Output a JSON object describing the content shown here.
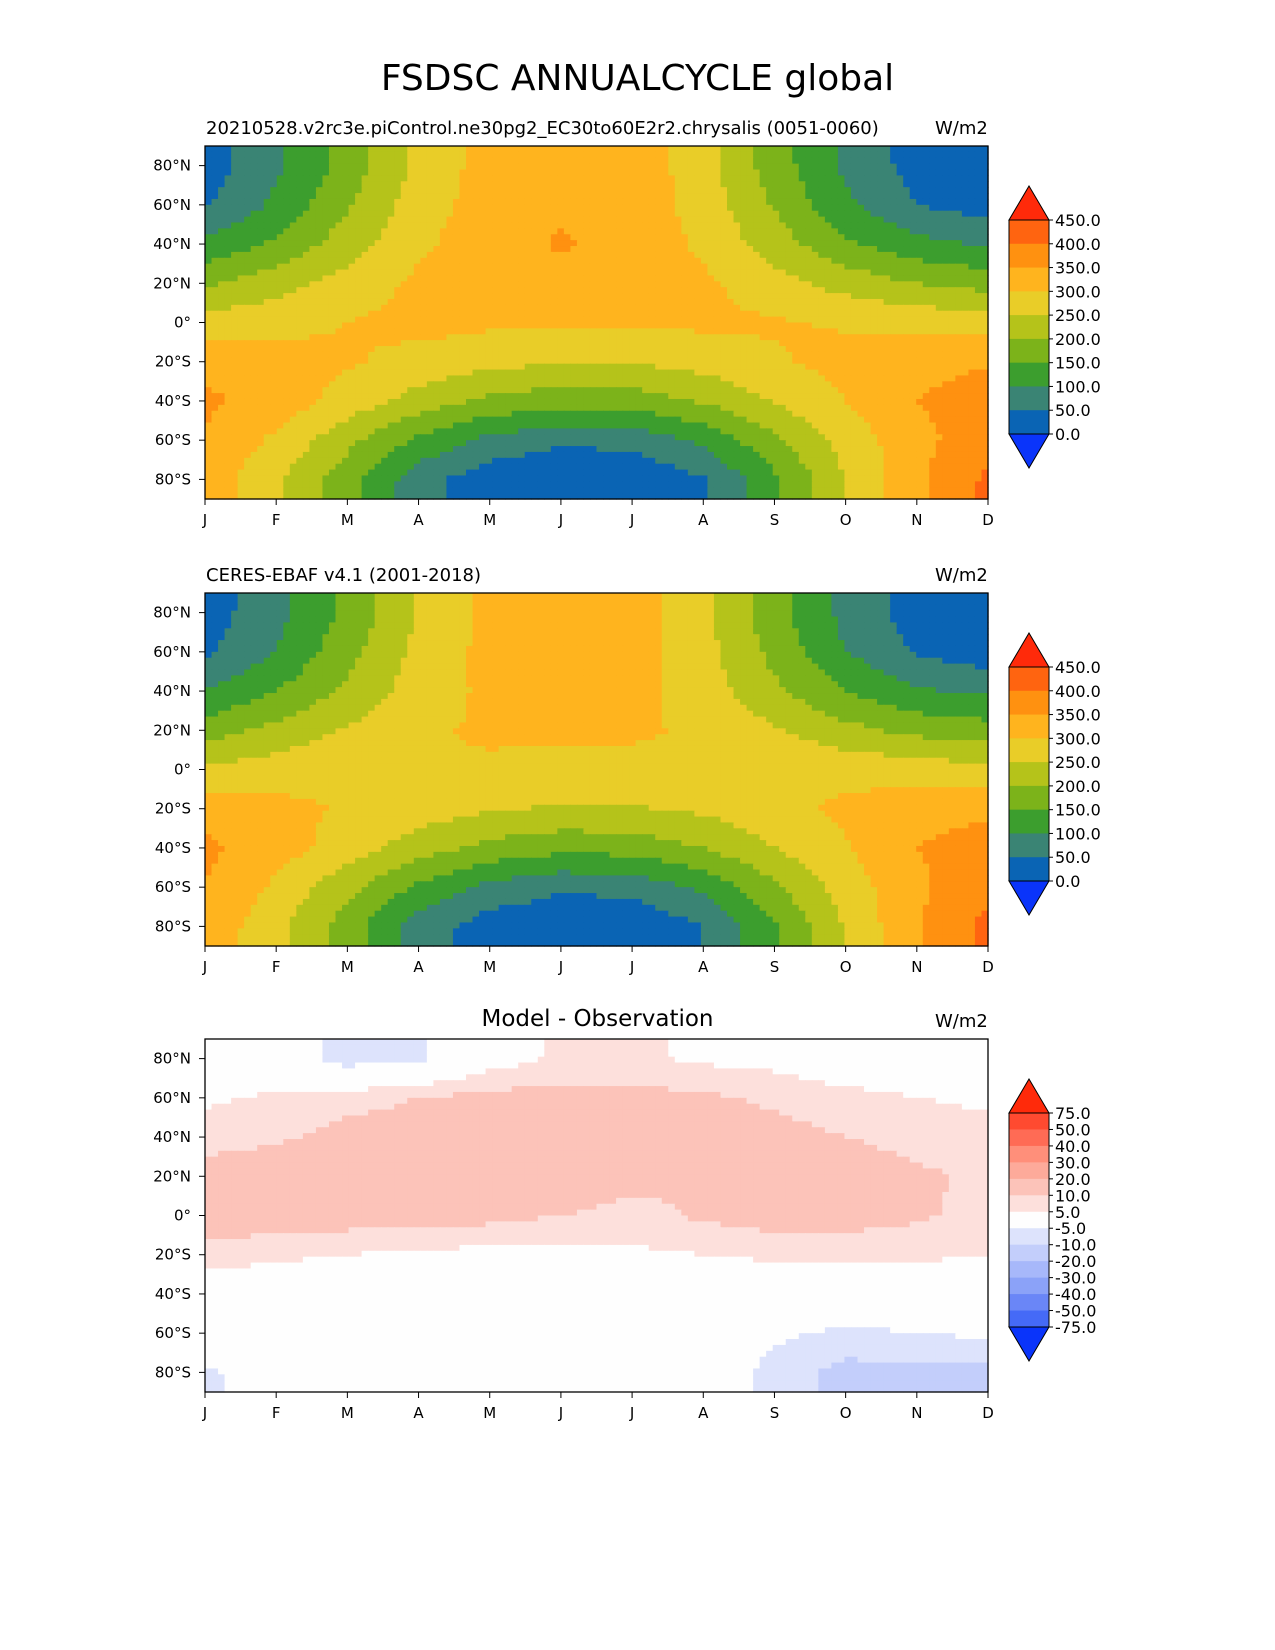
{
  "figure": {
    "title": "FSDSC ANNUALCYCLE global",
    "months": [
      "J",
      "F",
      "M",
      "A",
      "M",
      "J",
      "J",
      "A",
      "S",
      "O",
      "N",
      "D"
    ],
    "lat_ticks": [
      "80°N",
      "60°N",
      "40°N",
      "20°N",
      "0°",
      "20°S",
      "40°S",
      "60°S",
      "80°S"
    ],
    "lat_values": [
      80,
      60,
      40,
      20,
      0,
      -20,
      -40,
      -60,
      -80
    ]
  },
  "panels": [
    {
      "left_title": "20210528.v2rc3e.piControl.ne30pg2_EC30to60E2r2.chrysalis (0051-0060)",
      "center_title": "",
      "units": "W/m2",
      "colorbar": {
        "levels": [
          "450.0",
          "400.0",
          "350.0",
          "300.0",
          "250.0",
          "200.0",
          "150.0",
          "100.0",
          "50.0",
          "0.0"
        ],
        "colors": [
          "#ff2a0a",
          "#ff6410",
          "#ff9110",
          "#ffb41e",
          "#e9cd28",
          "#b5c31a",
          "#7cb31a",
          "#3c9e2e",
          "#3a8474",
          "#0a64b4",
          "#0a34fa"
        ]
      }
    },
    {
      "left_title": "CERES-EBAF v4.1 (2001-2018)",
      "center_title": "",
      "units": "W/m2",
      "colorbar": {
        "levels": [
          "450.0",
          "400.0",
          "350.0",
          "300.0",
          "250.0",
          "200.0",
          "150.0",
          "100.0",
          "50.0",
          "0.0"
        ],
        "colors": [
          "#ff2a0a",
          "#ff6410",
          "#ff9110",
          "#ffb41e",
          "#e9cd28",
          "#b5c31a",
          "#7cb31a",
          "#3c9e2e",
          "#3a8474",
          "#0a64b4",
          "#0a34fa"
        ]
      }
    },
    {
      "left_title": "",
      "center_title": "Model - Observation",
      "units": "W/m2",
      "colorbar": {
        "levels": [
          "75.0",
          "50.0",
          "40.0",
          "30.0",
          "20.0",
          "10.0",
          "5.0",
          "-5.0",
          "-10.0",
          "-20.0",
          "-30.0",
          "-40.0",
          "-50.0",
          "-75.0"
        ],
        "colors": [
          "#ff2a0a",
          "#ff4a30",
          "#ff6b55",
          "#ff8f7a",
          "#fdaa9a",
          "#fcc3b9",
          "#fde0dc",
          "#fefefe",
          "#dde3fc",
          "#c3cefb",
          "#a7b8fa",
          "#8ba2f8",
          "#6a86f7",
          "#456af7",
          "#0a34fa"
        ]
      }
    }
  ],
  "chart_data": [
    {
      "type": "heatmap",
      "title": "20210528.v2rc3e.piControl.ne30pg2_EC30to60E2r2.chrysalis (0051-0060)",
      "units": "W/m2",
      "x": [
        "J",
        "F",
        "M",
        "A",
        "M",
        "J",
        "J",
        "A",
        "S",
        "O",
        "N",
        "D"
      ],
      "y": [
        80,
        60,
        40,
        20,
        0,
        -20,
        -40,
        -60,
        -80
      ],
      "z": [
        [
          25,
          90,
          170,
          265,
          320,
          345,
          335,
          270,
          175,
          90,
          30,
          10
        ],
        [
          45,
          110,
          195,
          275,
          325,
          340,
          330,
          280,
          195,
          110,
          50,
          25
        ],
        [
          110,
          160,
          225,
          290,
          330,
          355,
          335,
          290,
          225,
          160,
          115,
          95
        ],
        [
          190,
          230,
          270,
          310,
          330,
          335,
          330,
          310,
          270,
          230,
          200,
          180
        ],
        [
          270,
          285,
          300,
          315,
          310,
          305,
          305,
          310,
          305,
          295,
          285,
          275
        ],
        [
          335,
          320,
          305,
          285,
          265,
          255,
          255,
          270,
          295,
          315,
          335,
          345
        ],
        [
          360,
          330,
          280,
          230,
          190,
          170,
          175,
          205,
          255,
          300,
          350,
          375
        ],
        [
          345,
          290,
          215,
          140,
          85,
          60,
          65,
          110,
          190,
          270,
          335,
          380
        ],
        [
          330,
          260,
          170,
          70,
          20,
          5,
          10,
          45,
          140,
          250,
          340,
          410
        ]
      ],
      "levels": [
        0,
        50,
        100,
        150,
        200,
        250,
        300,
        350,
        400,
        450
      ],
      "extend": "both"
    },
    {
      "type": "heatmap",
      "title": "CERES-EBAF v4.1 (2001-2018)",
      "units": "W/m2",
      "x": [
        "J",
        "F",
        "M",
        "A",
        "M",
        "J",
        "J",
        "A",
        "S",
        "O",
        "N",
        "D"
      ],
      "y": [
        80,
        60,
        40,
        20,
        0,
        -20,
        -40,
        -60,
        -80
      ],
      "z": [
        [
          25,
          85,
          160,
          255,
          315,
          340,
          330,
          260,
          170,
          85,
          25,
          10
        ],
        [
          40,
          100,
          185,
          265,
          315,
          330,
          320,
          270,
          185,
          100,
          45,
          20
        ],
        [
          100,
          150,
          210,
          275,
          310,
          320,
          315,
          275,
          210,
          150,
          105,
          90
        ],
        [
          175,
          215,
          255,
          295,
          305,
          305,
          305,
          295,
          255,
          215,
          185,
          170
        ],
        [
          260,
          275,
          290,
          300,
          295,
          290,
          290,
          295,
          295,
          285,
          275,
          265
        ],
        [
          330,
          315,
          295,
          275,
          255,
          245,
          245,
          260,
          285,
          310,
          330,
          340
        ],
        [
          360,
          325,
          275,
          225,
          185,
          165,
          170,
          200,
          250,
          295,
          350,
          375
        ],
        [
          350,
          290,
          215,
          140,
          85,
          60,
          65,
          110,
          190,
          275,
          340,
          385
        ],
        [
          335,
          265,
          175,
          75,
          25,
          5,
          10,
          50,
          145,
          255,
          345,
          415
        ]
      ],
      "levels": [
        0,
        50,
        100,
        150,
        200,
        250,
        300,
        350,
        400,
        450
      ],
      "extend": "both"
    },
    {
      "type": "heatmap",
      "title": "Model - Observation",
      "units": "W/m2",
      "x": [
        "J",
        "F",
        "M",
        "A",
        "M",
        "J",
        "J",
        "A",
        "S",
        "O",
        "N",
        "D"
      ],
      "y": [
        80,
        60,
        40,
        20,
        0,
        -20,
        -40,
        -60,
        -80
      ],
      "z": [
        [
          0,
          0,
          -8,
          -6,
          2,
          6,
          6,
          4,
          3,
          0,
          0,
          0
        ],
        [
          4,
          6,
          8,
          10,
          12,
          12,
          12,
          11,
          9,
          7,
          5,
          4
        ],
        [
          8,
          9,
          12,
          13,
          14,
          14,
          14,
          13,
          12,
          10,
          8,
          7
        ],
        [
          12,
          14,
          14,
          15,
          15,
          15,
          12,
          10,
          15,
          14,
          11,
          9
        ],
        [
          14,
          14,
          13,
          13,
          12,
          10,
          8,
          11,
          13,
          13,
          11,
          8
        ],
        [
          7,
          6,
          5,
          4,
          3,
          3,
          4,
          5,
          6,
          6,
          6,
          5
        ],
        [
          2,
          1,
          0,
          0,
          0,
          0,
          0,
          0,
          0,
          0,
          0,
          2
        ],
        [
          0,
          0,
          0,
          0,
          0,
          0,
          0,
          0,
          -4,
          -6,
          -5,
          -4
        ],
        [
          -6,
          -2,
          0,
          0,
          0,
          0,
          0,
          0,
          -7,
          -12,
          -12,
          -12
        ]
      ],
      "levels": [
        -75,
        -50,
        -40,
        -30,
        -20,
        -10,
        -5,
        5,
        10,
        20,
        30,
        40,
        50,
        75
      ],
      "extend": "both"
    }
  ]
}
